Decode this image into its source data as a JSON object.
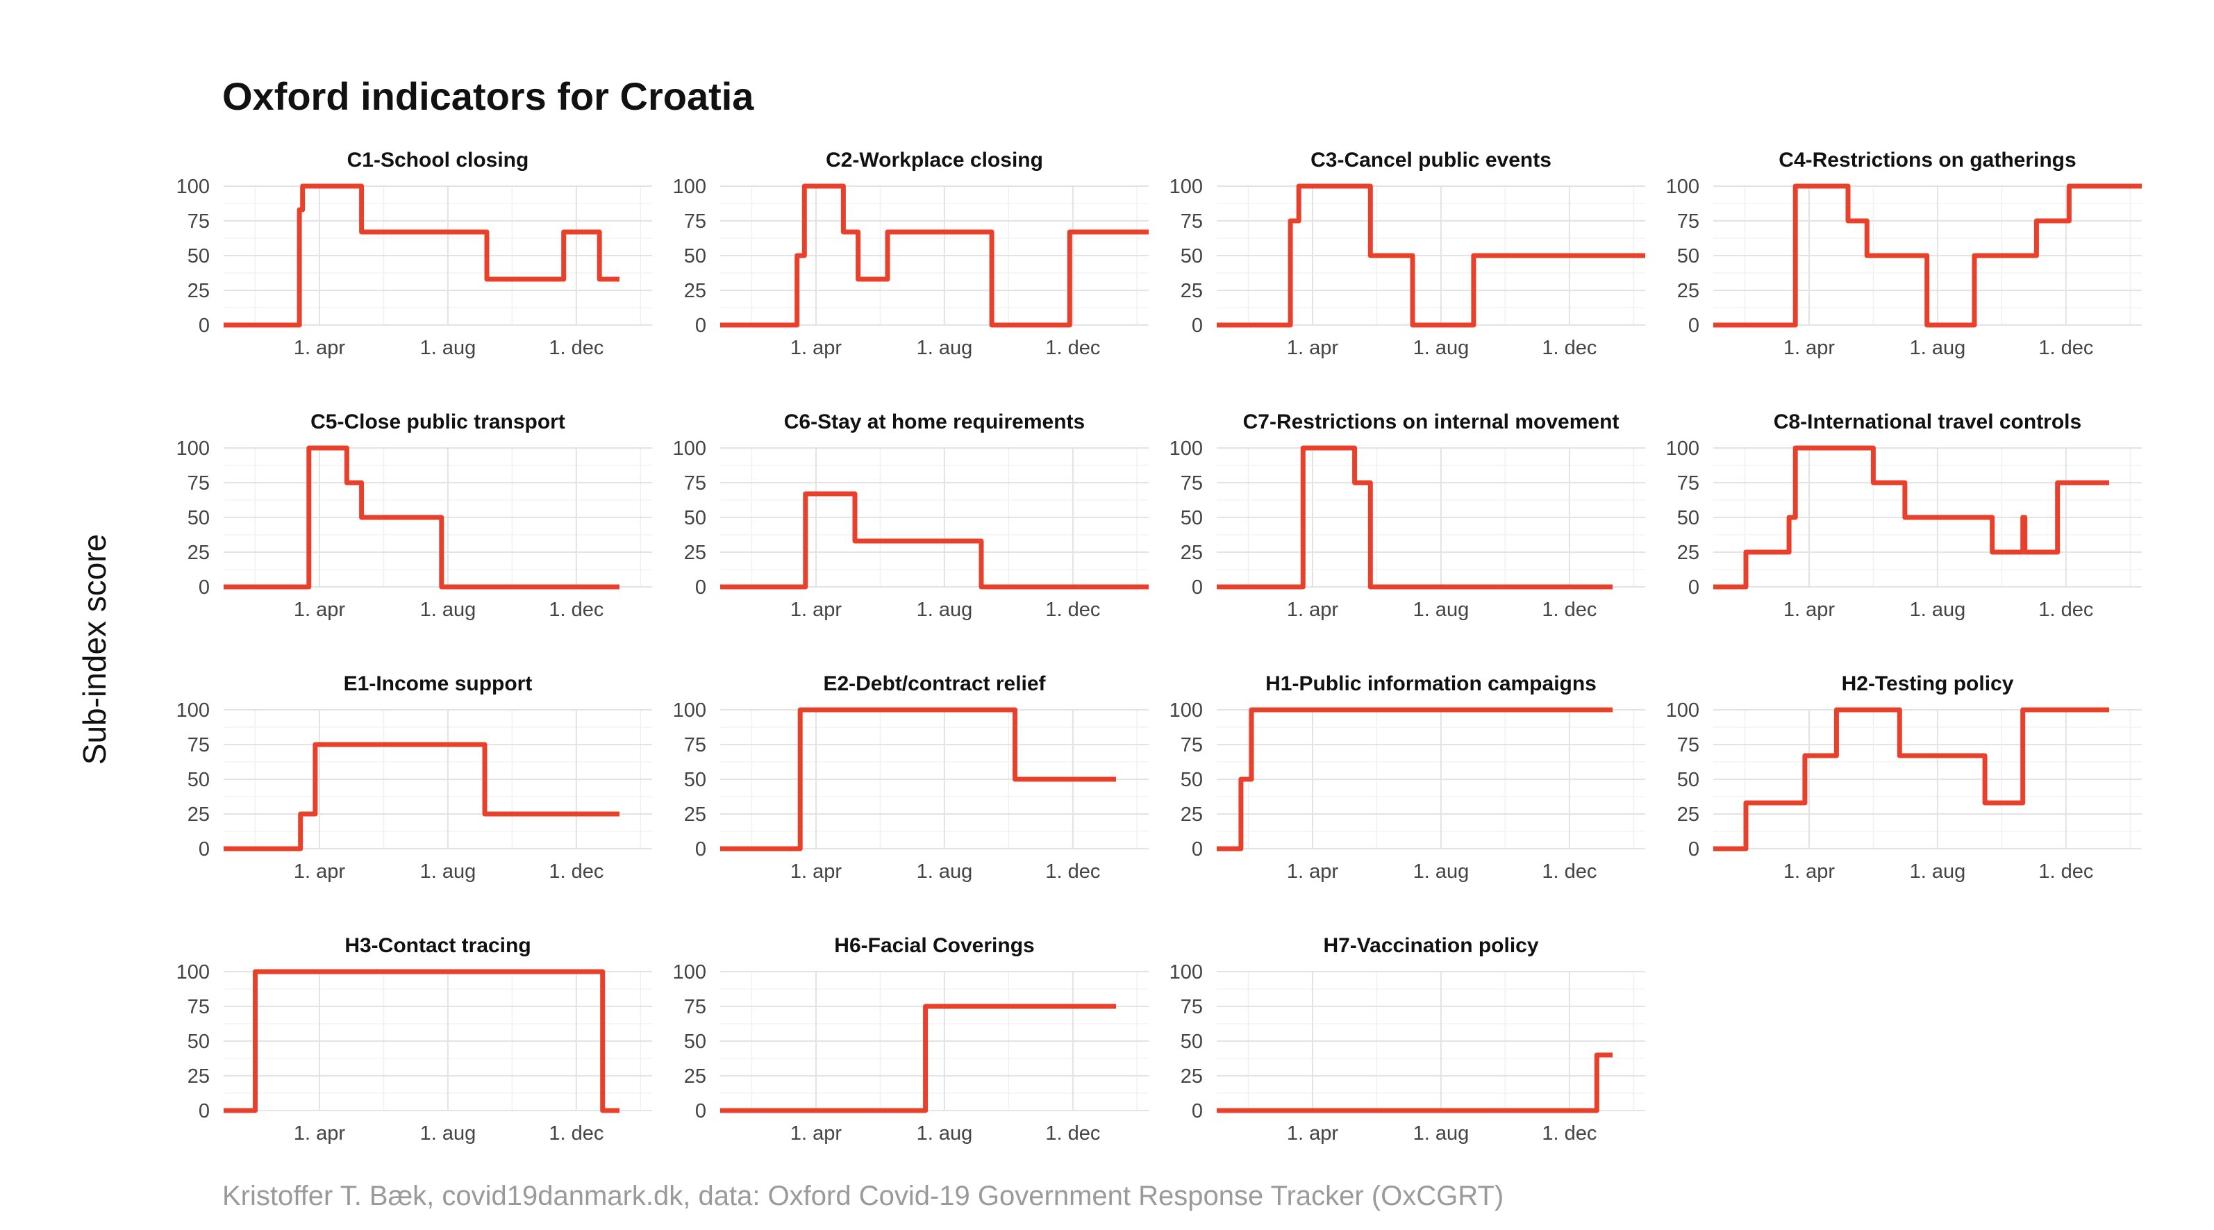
{
  "title": "Oxford indicators for Croatia",
  "ylabel": "Sub-index score",
  "caption": "Kristoffer T. Bæk, covid19danmark.dk, data: Oxford Covid-19 Government Response Tracker (OxCGRT)",
  "line_color": "#e8402a",
  "x_ticks": [
    {
      "date": "2020-04-01",
      "label": "1. apr"
    },
    {
      "date": "2020-08-01",
      "label": "1. aug"
    },
    {
      "date": "2020-12-01",
      "label": "1. dec"
    }
  ],
  "chart_data": [
    {
      "type": "line",
      "title": "C1-School closing",
      "xlim": [
        "2020-01-01",
        "2021-02-11"
      ],
      "ylim": [
        0,
        100
      ],
      "y_ticks": [
        0,
        25,
        50,
        75,
        100
      ],
      "grid": true,
      "x": [
        "2020-01-01",
        "2020-03-13",
        "2020-03-13",
        "2020-03-16",
        "2020-03-16",
        "2020-05-11",
        "2020-05-11",
        "2020-09-07",
        "2020-09-07",
        "2020-11-19",
        "2020-11-19",
        "2020-12-23",
        "2020-12-23",
        "2021-01-11"
      ],
      "y": [
        0,
        0,
        83,
        83,
        100,
        100,
        67,
        67,
        33,
        33,
        67,
        67,
        33,
        33
      ]
    },
    {
      "type": "line",
      "title": "C2-Workplace closing",
      "xlim": [
        "2020-01-01",
        "2021-02-11"
      ],
      "ylim": [
        0,
        100
      ],
      "y_ticks": [
        0,
        25,
        50,
        75,
        100
      ],
      "grid": true,
      "x": [
        "2020-01-01",
        "2020-03-14",
        "2020-03-14",
        "2020-03-21",
        "2020-03-21",
        "2020-04-27",
        "2020-04-27",
        "2020-05-11",
        "2020-05-11",
        "2020-06-08",
        "2020-06-08",
        "2020-09-15",
        "2020-09-15",
        "2020-11-28",
        "2020-11-28",
        "2021-02-11"
      ],
      "y": [
        0,
        0,
        50,
        50,
        100,
        100,
        67,
        67,
        33,
        33,
        67,
        67,
        0,
        0,
        67,
        67
      ]
    },
    {
      "type": "line",
      "title": "C3-Cancel public events",
      "xlim": [
        "2020-01-01",
        "2021-02-11"
      ],
      "ylim": [
        0,
        100
      ],
      "y_ticks": [
        0,
        25,
        50,
        75,
        100
      ],
      "grid": true,
      "x": [
        "2020-01-01",
        "2020-03-11",
        "2020-03-11",
        "2020-03-19",
        "2020-03-19",
        "2020-05-26",
        "2020-05-26",
        "2020-07-05",
        "2020-07-05",
        "2020-09-01",
        "2020-09-01",
        "2021-02-11"
      ],
      "y": [
        0,
        0,
        75,
        75,
        100,
        100,
        50,
        50,
        0,
        0,
        50,
        50
      ]
    },
    {
      "type": "line",
      "title": "C4-Restrictions on gatherings",
      "xlim": [
        "2020-01-01",
        "2021-02-11"
      ],
      "ylim": [
        0,
        100
      ],
      "y_ticks": [
        0,
        25,
        50,
        75,
        100
      ],
      "grid": true,
      "x": [
        "2020-01-01",
        "2020-03-19",
        "2020-03-19",
        "2020-05-08",
        "2020-05-08",
        "2020-05-26",
        "2020-05-26",
        "2020-07-22",
        "2020-07-22",
        "2020-09-05",
        "2020-09-05",
        "2020-11-03",
        "2020-11-03",
        "2020-12-04",
        "2020-12-04",
        "2021-02-11"
      ],
      "y": [
        0,
        0,
        100,
        100,
        75,
        75,
        50,
        50,
        0,
        0,
        50,
        50,
        75,
        75,
        100,
        100
      ]
    },
    {
      "type": "line",
      "title": "C5-Close public transport",
      "xlim": [
        "2020-01-01",
        "2021-02-11"
      ],
      "ylim": [
        0,
        100
      ],
      "y_ticks": [
        0,
        25,
        50,
        75,
        100
      ],
      "grid": true,
      "x": [
        "2020-01-01",
        "2020-03-22",
        "2020-03-22",
        "2020-04-27",
        "2020-04-27",
        "2020-05-11",
        "2020-05-11",
        "2020-07-26",
        "2020-07-26",
        "2021-01-11"
      ],
      "y": [
        0,
        0,
        100,
        100,
        75,
        75,
        50,
        50,
        0,
        0
      ]
    },
    {
      "type": "line",
      "title": "C6-Stay at home requirements",
      "xlim": [
        "2020-01-01",
        "2021-02-11"
      ],
      "ylim": [
        0,
        100
      ],
      "y_ticks": [
        0,
        25,
        50,
        75,
        100
      ],
      "grid": true,
      "x": [
        "2020-01-01",
        "2020-03-22",
        "2020-03-22",
        "2020-05-08",
        "2020-05-08",
        "2020-09-05",
        "2020-09-05",
        "2021-02-11"
      ],
      "y": [
        0,
        0,
        67,
        67,
        33,
        33,
        0,
        0
      ]
    },
    {
      "type": "line",
      "title": "C7-Restrictions on internal movement",
      "xlim": [
        "2020-01-01",
        "2021-02-11"
      ],
      "ylim": [
        0,
        100
      ],
      "y_ticks": [
        0,
        25,
        50,
        75,
        100
      ],
      "grid": true,
      "x": [
        "2020-01-01",
        "2020-03-23",
        "2020-03-23",
        "2020-05-11",
        "2020-05-11",
        "2020-05-26",
        "2020-05-26",
        "2021-01-11"
      ],
      "y": [
        0,
        0,
        100,
        100,
        75,
        75,
        0,
        0
      ]
    },
    {
      "type": "line",
      "title": "C8-International travel controls",
      "xlim": [
        "2020-01-01",
        "2021-02-11"
      ],
      "ylim": [
        0,
        100
      ],
      "y_ticks": [
        0,
        25,
        50,
        75,
        100
      ],
      "grid": true,
      "x": [
        "2020-01-01",
        "2020-02-01",
        "2020-02-01",
        "2020-03-13",
        "2020-03-13",
        "2020-03-19",
        "2020-03-19",
        "2020-06-01",
        "2020-06-01",
        "2020-07-01",
        "2020-07-01",
        "2020-09-22",
        "2020-09-22",
        "2020-10-21",
        "2020-10-21",
        "2020-10-23",
        "2020-10-23",
        "2020-11-23",
        "2020-11-23",
        "2021-01-11"
      ],
      "y": [
        0,
        0,
        25,
        25,
        50,
        50,
        100,
        100,
        75,
        75,
        50,
        50,
        25,
        25,
        50,
        50,
        25,
        25,
        75,
        75
      ]
    },
    {
      "type": "line",
      "title": "E1-Income support",
      "xlim": [
        "2020-01-01",
        "2021-02-11"
      ],
      "ylim": [
        0,
        100
      ],
      "y_ticks": [
        0,
        25,
        50,
        75,
        100
      ],
      "grid": true,
      "x": [
        "2020-01-01",
        "2020-03-14",
        "2020-03-14",
        "2020-03-28",
        "2020-03-28",
        "2020-09-05",
        "2020-09-05",
        "2021-01-11"
      ],
      "y": [
        0,
        0,
        25,
        25,
        75,
        75,
        25,
        25
      ]
    },
    {
      "type": "line",
      "title": "E2-Debt/contract relief",
      "xlim": [
        "2020-01-01",
        "2021-02-11"
      ],
      "ylim": [
        0,
        100
      ],
      "y_ticks": [
        0,
        25,
        50,
        75,
        100
      ],
      "grid": true,
      "x": [
        "2020-01-01",
        "2020-03-17",
        "2020-03-17",
        "2020-10-07",
        "2020-10-07",
        "2021-01-11"
      ],
      "y": [
        0,
        0,
        100,
        100,
        50,
        50
      ]
    },
    {
      "type": "line",
      "title": "H1-Public information campaigns",
      "xlim": [
        "2020-01-01",
        "2021-02-11"
      ],
      "ylim": [
        0,
        100
      ],
      "y_ticks": [
        0,
        25,
        50,
        75,
        100
      ],
      "grid": true,
      "x": [
        "2020-01-01",
        "2020-01-24",
        "2020-01-24",
        "2020-02-03",
        "2020-02-03",
        "2021-01-11"
      ],
      "y": [
        0,
        0,
        50,
        50,
        100,
        100
      ]
    },
    {
      "type": "line",
      "title": "H2-Testing policy",
      "xlim": [
        "2020-01-01",
        "2021-02-11"
      ],
      "ylim": [
        0,
        100
      ],
      "y_ticks": [
        0,
        25,
        50,
        75,
        100
      ],
      "grid": true,
      "x": [
        "2020-01-01",
        "2020-02-01",
        "2020-02-01",
        "2020-03-28",
        "2020-03-28",
        "2020-04-27",
        "2020-04-27",
        "2020-06-26",
        "2020-06-26",
        "2020-09-15",
        "2020-09-15",
        "2020-10-21",
        "2020-10-21",
        "2021-01-11"
      ],
      "y": [
        0,
        0,
        33,
        33,
        67,
        67,
        100,
        100,
        67,
        67,
        33,
        33,
        100,
        100
      ]
    },
    {
      "type": "line",
      "title": "H3-Contact tracing",
      "xlim": [
        "2020-01-01",
        "2021-02-11"
      ],
      "ylim": [
        0,
        100
      ],
      "y_ticks": [
        0,
        25,
        50,
        75,
        100
      ],
      "grid": true,
      "x": [
        "2020-01-01",
        "2020-01-31",
        "2020-01-31",
        "2020-12-26",
        "2020-12-26",
        "2021-01-11"
      ],
      "y": [
        0,
        0,
        100,
        100,
        0,
        0
      ]
    },
    {
      "type": "line",
      "title": "H6-Facial Coverings",
      "xlim": [
        "2020-01-01",
        "2021-02-11"
      ],
      "ylim": [
        0,
        100
      ],
      "y_ticks": [
        0,
        25,
        50,
        75,
        100
      ],
      "grid": true,
      "x": [
        "2020-01-01",
        "2020-07-14",
        "2020-07-14",
        "2021-01-11"
      ],
      "y": [
        0,
        0,
        75,
        75
      ]
    },
    {
      "type": "line",
      "title": "H7-Vaccination policy",
      "xlim": [
        "2020-01-01",
        "2021-02-11"
      ],
      "ylim": [
        0,
        100
      ],
      "y_ticks": [
        0,
        25,
        50,
        75,
        100
      ],
      "grid": true,
      "x": [
        "2020-01-01",
        "2020-12-27",
        "2020-12-27",
        "2021-01-11"
      ],
      "y": [
        0,
        0,
        40,
        40
      ]
    }
  ]
}
